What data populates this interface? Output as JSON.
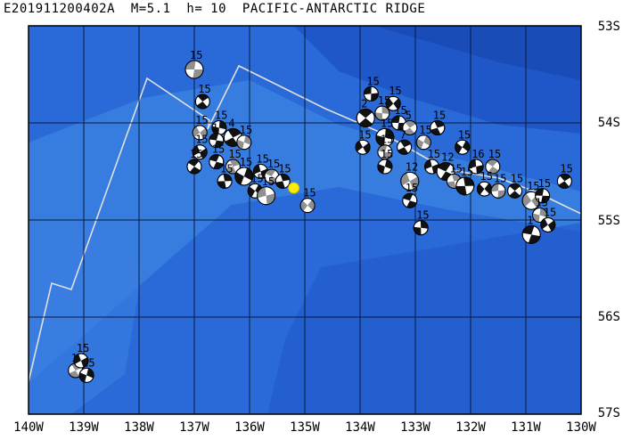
{
  "header": {
    "event_id": "E201911200402A",
    "magnitude": "M=5.1",
    "depth": "h= 10",
    "region": "PACIFIC-ANTARCTIC RIDGE"
  },
  "axes": {
    "lon_labels": [
      "140W",
      "139W",
      "138W",
      "137W",
      "136W",
      "135W",
      "134W",
      "133W",
      "132W",
      "131W",
      "130W"
    ],
    "lat_labels": [
      "53S",
      "54S",
      "55S",
      "56S",
      "57S"
    ],
    "lon_range": [
      -140,
      -130
    ],
    "lat_range": [
      -57,
      -53
    ]
  },
  "colors": {
    "ocean_deep": "#1f56c8",
    "ocean_mid": "#2a6ad8",
    "ocean_shallow": "#3a7fe0",
    "ridge_line": "#e0e0e0",
    "grid": "#0a1a3a",
    "event_marker": "#ffee00"
  },
  "main_event": {
    "lon": -135.2,
    "lat": -54.67
  },
  "mechanism_label": "15",
  "mechanisms": [
    {
      "lon": -137.0,
      "lat": -53.45,
      "label": "15"
    },
    {
      "lon": -136.85,
      "lat": -53.78,
      "label": "15"
    },
    {
      "lon": -136.55,
      "lat": -54.05,
      "label": "15"
    },
    {
      "lon": -136.9,
      "lat": -54.1,
      "label": "15"
    },
    {
      "lon": -136.6,
      "lat": -54.18,
      "label": "1"
    },
    {
      "lon": -136.3,
      "lat": -54.15,
      "label": "4"
    },
    {
      "lon": -136.1,
      "lat": -54.2,
      "label": "15"
    },
    {
      "lon": -136.9,
      "lat": -54.3,
      "label": "15"
    },
    {
      "lon": -136.6,
      "lat": -54.4,
      "label": "15"
    },
    {
      "lon": -136.3,
      "lat": -54.45,
      "label": "15"
    },
    {
      "lon": -136.1,
      "lat": -54.55,
      "label": "15"
    },
    {
      "lon": -135.8,
      "lat": -54.5,
      "label": "15"
    },
    {
      "lon": -135.6,
      "lat": -54.55,
      "label": "15"
    },
    {
      "lon": -135.4,
      "lat": -54.6,
      "label": "15"
    },
    {
      "lon": -135.9,
      "lat": -54.7,
      "label": "15"
    },
    {
      "lon": -135.7,
      "lat": -54.75,
      "label": "15"
    },
    {
      "lon": -137.0,
      "lat": -54.45,
      "label": "15"
    },
    {
      "lon": -136.45,
      "lat": -54.6,
      "label": "15"
    },
    {
      "lon": -134.95,
      "lat": -54.85,
      "label": "15"
    },
    {
      "lon": -133.8,
      "lat": -53.7,
      "label": "15"
    },
    {
      "lon": -133.9,
      "lat": -53.95,
      "label": "2"
    },
    {
      "lon": -133.6,
      "lat": -53.9,
      "label": "15"
    },
    {
      "lon": -133.4,
      "lat": -53.8,
      "label": "15"
    },
    {
      "lon": -133.3,
      "lat": -54.0,
      "label": "15"
    },
    {
      "lon": -133.1,
      "lat": -54.05,
      "label": "5"
    },
    {
      "lon": -133.55,
      "lat": -54.15,
      "label": "15"
    },
    {
      "lon": -133.95,
      "lat": -54.25,
      "label": "15"
    },
    {
      "lon": -133.55,
      "lat": -54.3,
      "label": "15"
    },
    {
      "lon": -133.2,
      "lat": -54.25,
      "label": "7"
    },
    {
      "lon": -133.55,
      "lat": -54.45,
      "label": "15"
    },
    {
      "lon": -133.1,
      "lat": -54.6,
      "label": "12"
    },
    {
      "lon": -133.1,
      "lat": -54.8,
      "label": "15"
    },
    {
      "lon": -132.6,
      "lat": -54.05,
      "label": "15"
    },
    {
      "lon": -132.85,
      "lat": -54.2,
      "label": "15"
    },
    {
      "lon": -132.7,
      "lat": -54.45,
      "label": "15"
    },
    {
      "lon": -132.45,
      "lat": -54.5,
      "label": "12"
    },
    {
      "lon": -132.3,
      "lat": -54.6,
      "label": "15"
    },
    {
      "lon": -132.15,
      "lat": -54.25,
      "label": "15"
    },
    {
      "lon": -131.9,
      "lat": -54.45,
      "label": "16"
    },
    {
      "lon": -131.6,
      "lat": -54.45,
      "label": "15"
    },
    {
      "lon": -132.1,
      "lat": -54.65,
      "label": "15"
    },
    {
      "lon": -131.75,
      "lat": -54.68,
      "label": "15"
    },
    {
      "lon": -131.5,
      "lat": -54.7,
      "label": "15"
    },
    {
      "lon": -131.2,
      "lat": -54.7,
      "label": "15"
    },
    {
      "lon": -132.9,
      "lat": -55.08,
      "label": "15"
    },
    {
      "lon": -130.9,
      "lat": -54.8,
      "label": "15"
    },
    {
      "lon": -130.7,
      "lat": -54.75,
      "label": "15"
    },
    {
      "lon": -130.3,
      "lat": -54.6,
      "label": "15"
    },
    {
      "lon": -130.75,
      "lat": -54.95,
      "label": "15"
    },
    {
      "lon": -130.6,
      "lat": -55.05,
      "label": "15"
    },
    {
      "lon": -130.9,
      "lat": -55.15,
      "label": "1"
    },
    {
      "lon": -139.15,
      "lat": -56.55,
      "label": "15"
    },
    {
      "lon": -138.95,
      "lat": -56.6,
      "label": "15"
    },
    {
      "lon": -139.05,
      "lat": -56.45,
      "label": "15"
    }
  ]
}
